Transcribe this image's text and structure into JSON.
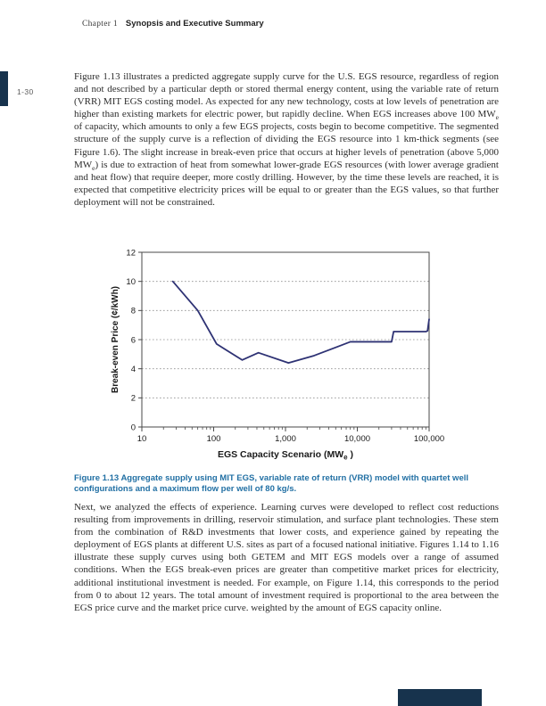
{
  "header": {
    "chapter_label": "Chapter 1",
    "title": "Synopsis and Executive Summary"
  },
  "page_number": "1-30",
  "body": {
    "paragraph_1_segments": [
      {
        "t": "Figure 1.13 illustrates a predicted aggregate supply curve for the U.S. EGS resource, regardless of region and not described by a particular depth or stored thermal energy content, using the variable rate of return (VRR) MIT EGS costing model. As expected for any new technology, costs at low levels of penetration are higher than existing markets for electric power, but rapidly decline. When EGS increases above 100 MW"
      },
      {
        "t": "e",
        "sub": true
      },
      {
        "t": " of capacity, which amounts to only a few EGS projects, costs begin to become competitive. The segmented structure of the supply curve is a reflection of dividing the EGS resource into 1 km-thick segments (see Figure 1.6). The slight increase in break-even price that occurs at higher levels of penetration (above 5,000 MW"
      },
      {
        "t": "e",
        "sub": true
      },
      {
        "t": ") is due to extraction of heat from somewhat lower-grade EGS resources (with lower average gradient and heat flow) that require deeper, more costly drilling. However, by the time these levels are reached, it is expected that competitive electricity prices will be equal to or greater than the EGS values, so that further deployment will not be constrained."
      }
    ],
    "paragraph_2": "Next, we analyzed the effects of experience. Learning curves were developed to reflect cost reductions resulting from improvements in drilling, reservoir stimulation, and surface plant technologies. These stem from the combination of R&D investments that lower costs, and experience gained by repeating the deployment of EGS plants at different U.S. sites as part of a focused national initiative. Figures 1.14 to 1.16 illustrate these supply curves using both GETEM and MIT EGS models over a range of assumed conditions. When the EGS break-even prices are greater than competitive market prices for electricity, additional institutional investment is needed. For example, on Figure 1.14, this corresponds to the period from 0 to about 12 years. The total amount of investment required is proportional to the area between the EGS price curve and the market price curve. weighted by the amount of EGS capacity online."
  },
  "figure": {
    "caption": "Figure 1.13 Aggregate supply using MIT EGS, variable rate of return (VRR) model with quartet well configurations and a maximum flow per well of 80 kg/s."
  },
  "colors": {
    "tab-navy": "#17334d",
    "caption-blue": "#2270a4",
    "chart-line": "#2e3274"
  },
  "chart_data": {
    "type": "line",
    "title": "",
    "ylabel": "Break-even Price (¢/kWh)",
    "xlabel_segments": [
      {
        "t": "EGS Capacity Scenario (MW"
      },
      {
        "t": "e",
        "sub": true
      },
      {
        "t": " )"
      }
    ],
    "x_scale": "log",
    "xlim": [
      10,
      100000
    ],
    "ylim": [
      0,
      12
    ],
    "x_ticks": [
      {
        "v": 10,
        "label": "10"
      },
      {
        "v": 100,
        "label": "100"
      },
      {
        "v": 1000,
        "label": "1,000"
      },
      {
        "v": 10000,
        "label": "10,000"
      },
      {
        "v": 100000,
        "label": "100,000"
      }
    ],
    "y_ticks": [
      0,
      2,
      4,
      6,
      8,
      10,
      12
    ],
    "grid": "horizontal dotted at 2,4,6,8,10",
    "legend": "none",
    "series": [
      {
        "name": "Aggregate supply curve (MIT EGS, VRR model)",
        "color": "#2e3274",
        "points": [
          [
            27,
            10.0
          ],
          [
            60,
            8.0
          ],
          [
            110,
            5.7
          ],
          [
            250,
            4.6
          ],
          [
            420,
            5.1
          ],
          [
            1100,
            4.4
          ],
          [
            2500,
            4.9
          ],
          [
            8000,
            5.85
          ],
          [
            30000,
            5.85
          ],
          [
            32000,
            6.55
          ],
          [
            90000,
            6.55
          ],
          [
            95000,
            6.6
          ],
          [
            100000,
            7.4
          ]
        ]
      }
    ]
  }
}
